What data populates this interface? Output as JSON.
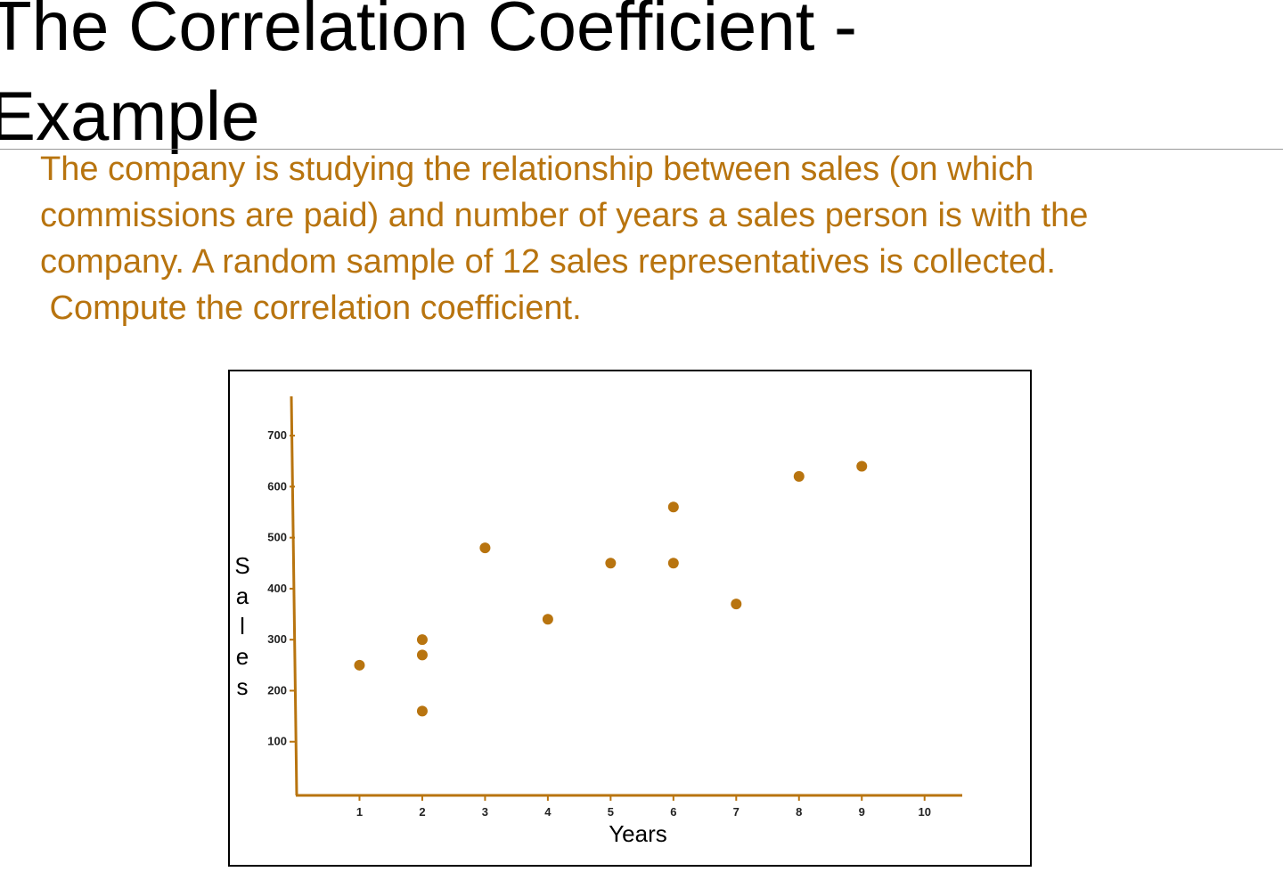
{
  "title": [
    "The Correlation Coefficient -",
    "Example"
  ],
  "body": [
    "The company is studying the relationship between sales (on which",
    "commissions are paid) and number of years a sales person is with the",
    "company. A random sample of 12 sales representatives is collected.",
    " Compute the correlation coefficient."
  ],
  "chart_data": {
    "type": "scatter",
    "xlabel": "Years",
    "ylabel": "Sales",
    "color": "#b8740f",
    "x": [
      1,
      2,
      2,
      2,
      3,
      4,
      5,
      6,
      6,
      7,
      8,
      9
    ],
    "values": [
      250,
      300,
      270,
      160,
      480,
      340,
      450,
      560,
      450,
      370,
      620,
      640
    ],
    "xlim": [
      0,
      10.6
    ],
    "ylim": [
      0,
      770
    ],
    "xticks": [
      1,
      2,
      3,
      4,
      5,
      6,
      7,
      8,
      9,
      10
    ],
    "yticks": [
      100,
      200,
      300,
      400,
      500,
      600,
      700
    ]
  }
}
